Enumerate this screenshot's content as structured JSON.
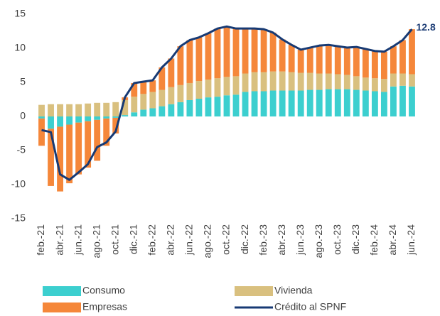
{
  "chart_data": {
    "type": "bar-line",
    "categories": [
      "feb.-21",
      null,
      "abr.-21",
      null,
      "jun.-21",
      null,
      "ago.-21",
      null,
      "oct.-21",
      null,
      "dic.-21",
      null,
      "feb.-22",
      null,
      "abr.-22",
      null,
      "jun.-22",
      null,
      "ago.-22",
      null,
      "oct.-22",
      null,
      "dic.-22",
      null,
      "feb.-23",
      null,
      "abr.-23",
      null,
      "jun.-23",
      null,
      "ago.-23",
      null,
      "oct.-23",
      null,
      "dic.-23",
      null,
      "feb.-24",
      null,
      "abr.-24",
      null,
      "jun.-24"
    ],
    "series": [
      {
        "name": "Consumo",
        "color": "#3ccfcf",
        "kind": "bar",
        "values": [
          -0.3,
          -1.8,
          -1.5,
          -1.2,
          -0.9,
          -0.7,
          -0.5,
          -0.3,
          -0.2,
          0.2,
          0.6,
          1.0,
          1.2,
          1.5,
          1.8,
          2.1,
          2.4,
          2.6,
          2.8,
          2.9,
          3.1,
          3.2,
          3.6,
          3.7,
          3.7,
          3.8,
          3.8,
          3.8,
          3.8,
          3.9,
          3.9,
          4.0,
          4.0,
          4.0,
          3.9,
          3.8,
          3.7,
          3.6,
          4.4,
          4.5,
          4.4
        ]
      },
      {
        "name": "Vivienda",
        "color": "#d9c07f",
        "kind": "bar",
        "values": [
          1.7,
          1.8,
          1.8,
          1.8,
          1.8,
          1.9,
          2.0,
          2.0,
          2.1,
          2.2,
          2.3,
          2.3,
          2.4,
          2.4,
          2.5,
          2.5,
          2.5,
          2.6,
          2.6,
          2.7,
          2.7,
          2.7,
          2.7,
          2.8,
          2.8,
          2.8,
          2.8,
          2.7,
          2.6,
          2.5,
          2.4,
          2.3,
          2.2,
          2.1,
          2.0,
          1.9,
          1.9,
          1.9,
          1.9,
          1.8,
          1.8
        ]
      },
      {
        "name": "Empresas",
        "color": "#f5873a",
        "kind": "bar",
        "values": [
          -4.0,
          -8.4,
          -9.5,
          -8.6,
          -7.6,
          -6.8,
          -6.0,
          -4.0,
          -2.3,
          0.4,
          2.0,
          1.8,
          1.7,
          3.3,
          4.2,
          5.7,
          6.3,
          6.4,
          6.8,
          7.3,
          7.4,
          7.0,
          6.6,
          6.4,
          6.3,
          5.7,
          4.7,
          4.0,
          3.4,
          3.7,
          4.1,
          4.2,
          4.1,
          4.0,
          4.3,
          4.2,
          4.0,
          4.0,
          4.0,
          4.9,
          6.6
        ]
      },
      {
        "name": "Crédito al SPNF",
        "color": "#173a74",
        "kind": "line",
        "values": [
          -2.0,
          -2.3,
          -8.5,
          -9.3,
          -8.2,
          -7.0,
          -4.5,
          -3.8,
          -2.2,
          2.8,
          4.9,
          5.1,
          5.3,
          7.2,
          8.5,
          10.3,
          11.2,
          11.6,
          12.2,
          12.9,
          13.2,
          12.9,
          12.9,
          12.9,
          12.8,
          12.3,
          11.3,
          10.5,
          9.8,
          10.1,
          10.4,
          10.5,
          10.3,
          10.1,
          10.2,
          9.9,
          9.6,
          9.5,
          10.3,
          11.2,
          12.8
        ]
      }
    ],
    "ylim": [
      -15,
      15
    ],
    "yticks": [
      -15,
      -10,
      -5,
      0,
      5,
      10,
      15
    ],
    "grid": false
  }
}
